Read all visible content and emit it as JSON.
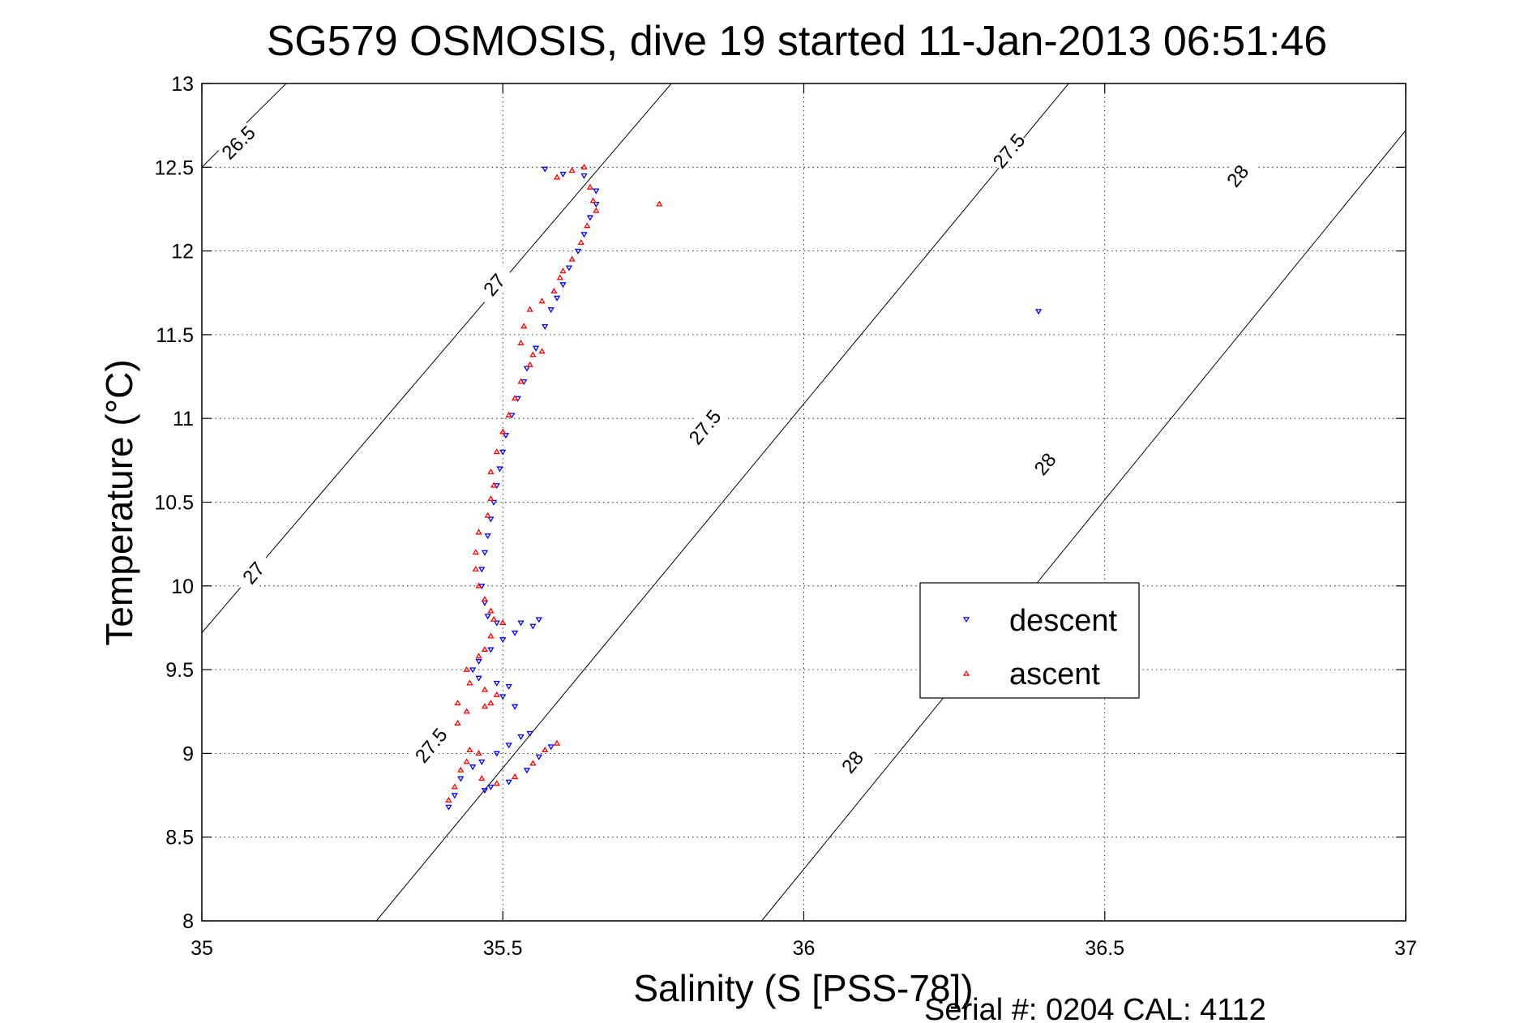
{
  "chart_data": {
    "type": "scatter",
    "title": "SG579 OSMOSIS, dive 19 started 11-Jan-2013 06:51:46",
    "xlabel": "Salinity (S [PSS-78])",
    "ylabel": "Temperature (°C)",
    "footer": "Serial #: 0204  CAL: 4112",
    "xlim": [
      35,
      37
    ],
    "ylim": [
      8,
      13
    ],
    "grid": true,
    "grid_style": "dotted",
    "legend_position": "center-right",
    "xticks": [
      "35",
      "35.5",
      "36",
      "36.5",
      "37"
    ],
    "yticks": [
      "8",
      "8.5",
      "9",
      "9.5",
      "10",
      "10.5",
      "11",
      "11.5",
      "12",
      "12.5",
      "13"
    ],
    "isopycnals": [
      {
        "label": "26.5",
        "points": [
          [
            35.0,
            12.5
          ],
          [
            35.14,
            13.0
          ]
        ],
        "label_at": [
          [
            35.06,
            12.65
          ]
        ]
      },
      {
        "label": "27",
        "points": [
          [
            35.0,
            9.72
          ],
          [
            35.78,
            13.0
          ]
        ],
        "label_at": [
          [
            35.085,
            10.08
          ],
          [
            35.485,
            11.8
          ]
        ]
      },
      {
        "label": "27.5",
        "points": [
          [
            35.29,
            8.0
          ],
          [
            36.44,
            13.0
          ]
        ],
        "label_at": [
          [
            35.38,
            9.05
          ],
          [
            35.835,
            10.95
          ],
          [
            36.34,
            12.6
          ]
        ]
      },
      {
        "label": "28",
        "points": [
          [
            35.93,
            8.0
          ],
          [
            37.0,
            12.72
          ]
        ],
        "label_at": [
          [
            36.08,
            8.95
          ],
          [
            36.4,
            10.73
          ],
          [
            36.72,
            12.45
          ]
        ]
      }
    ],
    "series": [
      {
        "name": "descent",
        "color": "#0000ff",
        "marker": "triangle-down",
        "points": [
          [
            35.57,
            12.49
          ],
          [
            35.6,
            12.46
          ],
          [
            35.635,
            12.45
          ],
          [
            35.655,
            12.36
          ],
          [
            35.655,
            12.28
          ],
          [
            35.645,
            12.2
          ],
          [
            35.635,
            12.1
          ],
          [
            35.625,
            12.0
          ],
          [
            35.61,
            11.9
          ],
          [
            35.6,
            11.8
          ],
          [
            35.59,
            11.72
          ],
          [
            35.58,
            11.65
          ],
          [
            35.57,
            11.55
          ],
          [
            35.555,
            11.42
          ],
          [
            35.54,
            11.3
          ],
          [
            35.535,
            11.22
          ],
          [
            35.525,
            11.12
          ],
          [
            35.515,
            11.02
          ],
          [
            35.505,
            10.9
          ],
          [
            35.5,
            10.8
          ],
          [
            35.495,
            10.7
          ],
          [
            35.49,
            10.6
          ],
          [
            35.485,
            10.5
          ],
          [
            35.48,
            10.4
          ],
          [
            35.475,
            10.3
          ],
          [
            35.47,
            10.2
          ],
          [
            35.465,
            10.1
          ],
          [
            35.465,
            10.0
          ],
          [
            35.47,
            9.9
          ],
          [
            35.475,
            9.82
          ],
          [
            35.49,
            9.78
          ],
          [
            35.53,
            9.78
          ],
          [
            35.55,
            9.76
          ],
          [
            35.56,
            9.8
          ],
          [
            35.52,
            9.72
          ],
          [
            35.5,
            9.68
          ],
          [
            35.48,
            9.62
          ],
          [
            35.46,
            9.55
          ],
          [
            35.45,
            9.5
          ],
          [
            35.46,
            9.45
          ],
          [
            35.49,
            9.42
          ],
          [
            35.51,
            9.4
          ],
          [
            35.5,
            9.34
          ],
          [
            35.52,
            9.28
          ],
          [
            35.545,
            9.12
          ],
          [
            35.53,
            9.1
          ],
          [
            35.51,
            9.05
          ],
          [
            35.49,
            9.0
          ],
          [
            35.465,
            8.95
          ],
          [
            35.45,
            8.92
          ],
          [
            35.43,
            8.85
          ],
          [
            35.42,
            8.75
          ],
          [
            35.41,
            8.68
          ],
          [
            35.47,
            8.78
          ],
          [
            35.48,
            8.8
          ],
          [
            35.51,
            8.83
          ],
          [
            35.54,
            8.9
          ],
          [
            35.56,
            8.98
          ],
          [
            35.58,
            9.04
          ],
          [
            36.39,
            11.64
          ]
        ]
      },
      {
        "name": "ascent",
        "color": "#ff0000",
        "marker": "triangle-up",
        "points": [
          [
            35.59,
            12.44
          ],
          [
            35.615,
            12.48
          ],
          [
            35.635,
            12.5
          ],
          [
            35.645,
            12.38
          ],
          [
            35.65,
            12.3
          ],
          [
            35.655,
            12.24
          ],
          [
            35.64,
            12.15
          ],
          [
            35.63,
            12.05
          ],
          [
            35.615,
            11.95
          ],
          [
            35.6,
            11.88
          ],
          [
            35.595,
            11.84
          ],
          [
            35.585,
            11.76
          ],
          [
            35.565,
            11.7
          ],
          [
            35.545,
            11.65
          ],
          [
            35.535,
            11.55
          ],
          [
            35.53,
            11.45
          ],
          [
            35.55,
            11.38
          ],
          [
            35.565,
            11.4
          ],
          [
            35.545,
            11.32
          ],
          [
            35.53,
            11.22
          ],
          [
            35.52,
            11.12
          ],
          [
            35.51,
            11.02
          ],
          [
            35.5,
            10.92
          ],
          [
            35.49,
            10.8
          ],
          [
            35.48,
            10.68
          ],
          [
            35.485,
            10.6
          ],
          [
            35.48,
            10.52
          ],
          [
            35.475,
            10.42
          ],
          [
            35.46,
            10.32
          ],
          [
            35.455,
            10.2
          ],
          [
            35.455,
            10.1
          ],
          [
            35.46,
            10.0
          ],
          [
            35.47,
            9.92
          ],
          [
            35.48,
            9.85
          ],
          [
            35.485,
            9.8
          ],
          [
            35.5,
            9.78
          ],
          [
            35.48,
            9.7
          ],
          [
            35.47,
            9.62
          ],
          [
            35.46,
            9.58
          ],
          [
            35.44,
            9.5
          ],
          [
            35.445,
            9.42
          ],
          [
            35.47,
            9.38
          ],
          [
            35.49,
            9.35
          ],
          [
            35.48,
            9.3
          ],
          [
            35.47,
            9.28
          ],
          [
            35.44,
            9.25
          ],
          [
            35.425,
            9.18
          ],
          [
            35.425,
            9.3
          ],
          [
            35.445,
            9.02
          ],
          [
            35.46,
            9.0
          ],
          [
            35.44,
            8.95
          ],
          [
            35.43,
            8.9
          ],
          [
            35.42,
            8.8
          ],
          [
            35.41,
            8.72
          ],
          [
            35.465,
            8.85
          ],
          [
            35.49,
            8.82
          ],
          [
            35.52,
            8.86
          ],
          [
            35.55,
            8.94
          ],
          [
            35.57,
            9.02
          ],
          [
            35.59,
            9.06
          ],
          [
            35.76,
            12.28
          ]
        ]
      }
    ]
  }
}
